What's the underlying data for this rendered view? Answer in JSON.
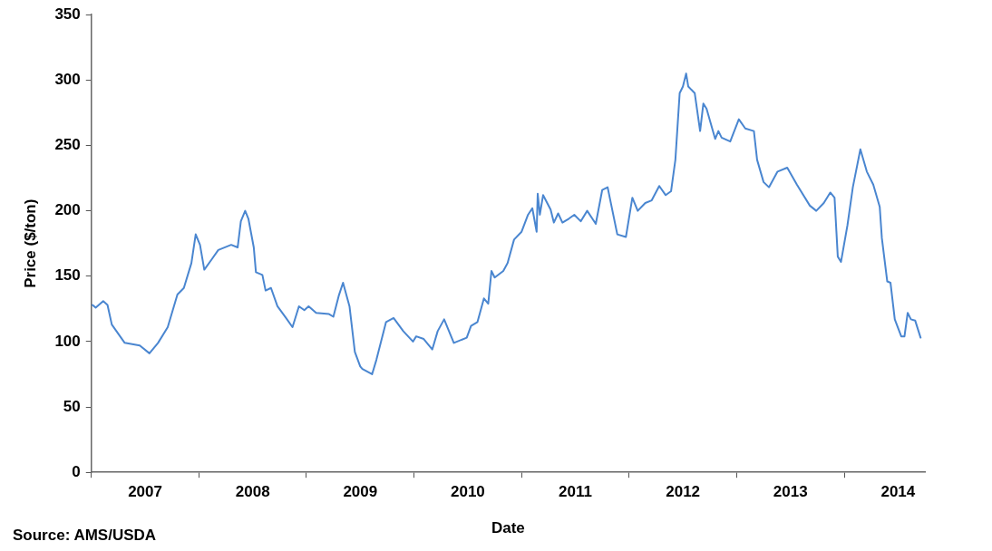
{
  "chart_data": {
    "type": "line",
    "xlabel": "Date",
    "ylabel": "Price ($/ton)",
    "annotations": [
      "Source: AMS/USDA"
    ],
    "xlim": [
      2007,
      2014.75
    ],
    "xticks": [
      {
        "value": 2007,
        "label": null
      },
      {
        "value": 2007.5,
        "label": "2007"
      },
      {
        "value": 2008,
        "label": null
      },
      {
        "value": 2008.5,
        "label": "2008"
      },
      {
        "value": 2009,
        "label": null
      },
      {
        "value": 2009.5,
        "label": "2009"
      },
      {
        "value": 2010,
        "label": null
      },
      {
        "value": 2010.5,
        "label": "2010"
      },
      {
        "value": 2011,
        "label": null
      },
      {
        "value": 2011.5,
        "label": "2011"
      },
      {
        "value": 2012,
        "label": null
      },
      {
        "value": 2012.5,
        "label": "2012"
      },
      {
        "value": 2013,
        "label": null
      },
      {
        "value": 2013.5,
        "label": "2013"
      },
      {
        "value": 2014,
        "label": null
      },
      {
        "value": 2014.5,
        "label": "2014"
      }
    ],
    "ylim": [
      0,
      350
    ],
    "yticks": [
      0,
      50,
      100,
      150,
      200,
      250,
      300,
      350
    ],
    "grid": false,
    "legend": false,
    "marker": "none",
    "line_style": "solid",
    "series": [
      {
        "color": "#4a86d0",
        "x": [
          2007.01,
          2007.04,
          2007.11,
          2007.15,
          2007.19,
          2007.31,
          2007.45,
          2007.54,
          2007.62,
          2007.71,
          2007.8,
          2007.86,
          2007.93,
          2007.97,
          2008.01,
          2008.05,
          2008.12,
          2008.18,
          2008.3,
          2008.36,
          2008.39,
          2008.43,
          2008.46,
          2008.51,
          2008.53,
          2008.59,
          2008.62,
          2008.67,
          2008.73,
          2008.81,
          2008.87,
          2008.93,
          2008.98,
          2009.02,
          2009.09,
          2009.21,
          2009.25,
          2009.3,
          2009.34,
          2009.4,
          2009.45,
          2009.5,
          2009.52,
          2009.61,
          2009.65,
          2009.74,
          2009.81,
          2009.9,
          2009.99,
          2010.02,
          2010.09,
          2010.17,
          2010.22,
          2010.28,
          2010.37,
          2010.49,
          2010.53,
          2010.59,
          2010.65,
          2010.69,
          2010.72,
          2010.75,
          2010.83,
          2010.87,
          2010.93,
          2011.0,
          2011.06,
          2011.1,
          2011.14,
          2011.15,
          2011.17,
          2011.2,
          2011.27,
          2011.3,
          2011.34,
          2011.38,
          2011.44,
          2011.49,
          2011.55,
          2011.61,
          2011.69,
          2011.75,
          2011.8,
          2011.89,
          2011.97,
          2012.03,
          2012.08,
          2012.15,
          2012.21,
          2012.28,
          2012.34,
          2012.39,
          2012.43,
          2012.47,
          2012.5,
          2012.53,
          2012.55,
          2012.61,
          2012.66,
          2012.69,
          2012.72,
          2012.8,
          2012.83,
          2012.86,
          2012.94,
          2013.02,
          2013.08,
          2013.16,
          2013.19,
          2013.25,
          2013.3,
          2013.38,
          2013.47,
          2013.56,
          2013.68,
          2013.74,
          2013.81,
          2013.87,
          2013.91,
          2013.94,
          2013.97,
          2014.03,
          2014.08,
          2014.15,
          2014.21,
          2014.27,
          2014.33,
          2014.35,
          2014.4,
          2014.43,
          2014.47,
          2014.53,
          2014.56,
          2014.59,
          2014.62,
          2014.66,
          2014.71
        ],
        "values": [
          128,
          126,
          131,
          128,
          113,
          99,
          97,
          91,
          99,
          111,
          136,
          141,
          160,
          182,
          174,
          155,
          163,
          170,
          174,
          172,
          192,
          200,
          194,
          172,
          153,
          151,
          139,
          141,
          127,
          118,
          111,
          127,
          124,
          127,
          122,
          121,
          119,
          135,
          145,
          127,
          92,
          81,
          79,
          75,
          86,
          115,
          118,
          108,
          100,
          104,
          102,
          94,
          108,
          117,
          99,
          103,
          112,
          115,
          133,
          129,
          154,
          149,
          154,
          160,
          178,
          184,
          197,
          202,
          184,
          213,
          197,
          212,
          201,
          191,
          198,
          191,
          194,
          197,
          192,
          200,
          190,
          216,
          218,
          182,
          180,
          210,
          200,
          206,
          208,
          219,
          212,
          215,
          239,
          290,
          295,
          305,
          295,
          290,
          261,
          282,
          278,
          255,
          261,
          256,
          253,
          270,
          263,
          261,
          239,
          222,
          218,
          230,
          233,
          220,
          204,
          200,
          206,
          214,
          210,
          165,
          161,
          189,
          218,
          247,
          230,
          220,
          203,
          179,
          146,
          145,
          117,
          104,
          104,
          122,
          117,
          116,
          103
        ]
      }
    ]
  }
}
